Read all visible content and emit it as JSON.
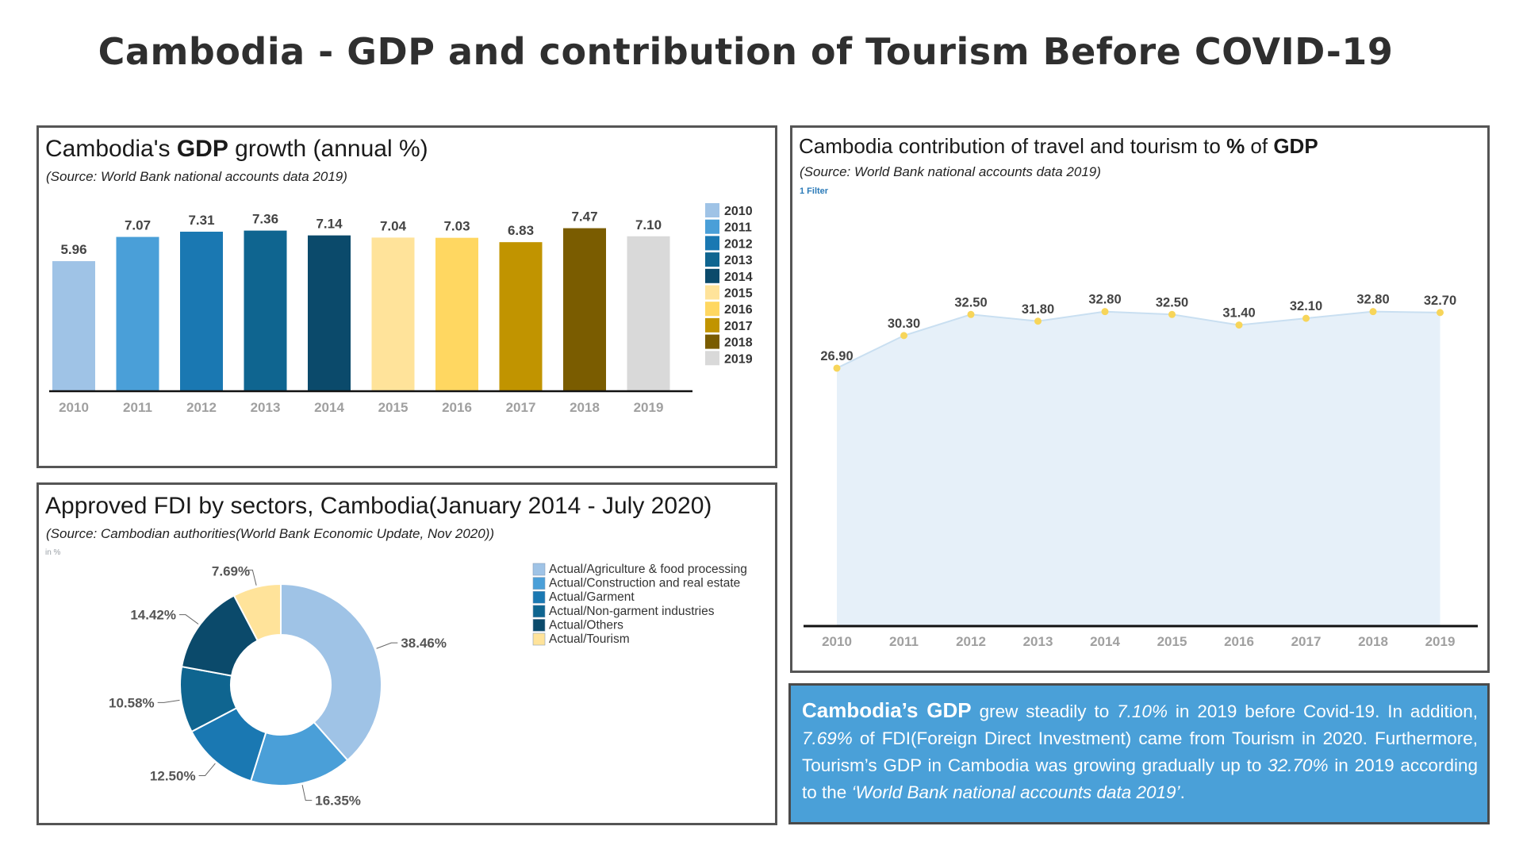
{
  "page": {
    "title": "Cambodia - GDP and contribution of Tourism Before COVID-19"
  },
  "gdp_panel": {
    "title_before": "Cambodia's ",
    "title_bold": "GDP",
    "title_after": " growth (annual %)",
    "source": "(Source: World Bank national accounts data 2019)"
  },
  "tourism_panel": {
    "title_before": "Cambodia contribution of travel and tourism to ",
    "title_bold_1": "%",
    "title_mid": " of ",
    "title_bold_2": "GDP",
    "source": "(Source: World Bank national accounts data 2019)",
    "filter_label": "1 Filter"
  },
  "fdi_panel": {
    "title": "Approved FDI by sectors, Cambodia(January 2014 - July 2020)",
    "source": "(Source: Cambodian authorities(World Bank Economic Update, Nov 2020))",
    "unit_label": "in %"
  },
  "summary": {
    "p1": "Cambodia’s GDP",
    "p2": " grew steadily to ",
    "p3": "7.10%",
    "p4": " in 2019 before Covid-19. In addition, ",
    "p5": "7.69%",
    "p6": " of FDI(Foreign Direct Investment) came from Tourism in 2020. Furthermore, Tourism’s GDP in Cambodia was growing gradually up to ",
    "p7": "32.70%",
    "p8": " in 2019 according to the ",
    "p9": "‘World Bank national accounts data 2019’",
    "p10": "."
  },
  "chart_data": [
    {
      "id": "gdp_growth",
      "type": "bar",
      "title": "Cambodia's GDP growth (annual %)",
      "categories": [
        "2010",
        "2011",
        "2012",
        "2013",
        "2014",
        "2015",
        "2016",
        "2017",
        "2018",
        "2019"
      ],
      "values": [
        5.96,
        7.07,
        7.31,
        7.36,
        7.14,
        7.04,
        7.03,
        6.83,
        7.47,
        7.1
      ],
      "labels": [
        "5.96",
        "7.07",
        "7.31",
        "7.36",
        "7.14",
        "7.04",
        "7.03",
        "6.83",
        "7.47",
        "7.10"
      ],
      "colors": [
        "#9fc3e6",
        "#4a9fd8",
        "#1a78b2",
        "#0f6590",
        "#0b4a6b",
        "#ffe39a",
        "#ffd761",
        "#c19400",
        "#7a5c00",
        "#d9d9d9"
      ],
      "ylim": [
        0,
        8
      ],
      "legend_position": "right",
      "grid": false
    },
    {
      "id": "tourism_gdp",
      "type": "area",
      "title": "Cambodia contribution of travel and tourism to % of GDP",
      "x": [
        "2010",
        "2011",
        "2012",
        "2013",
        "2014",
        "2015",
        "2016",
        "2017",
        "2018",
        "2019"
      ],
      "values": [
        26.9,
        30.3,
        32.5,
        31.8,
        32.8,
        32.5,
        31.4,
        32.1,
        32.8,
        32.7
      ],
      "labels": [
        "26.90",
        "30.30",
        "32.50",
        "31.80",
        "32.80",
        "32.50",
        "31.40",
        "32.10",
        "32.80",
        "32.70"
      ],
      "fill_color": "#e6f0f9",
      "line_color": "#c9dff1",
      "marker_color": "#f7d55a",
      "ylim": [
        0,
        36
      ],
      "grid": false
    },
    {
      "id": "fdi_sectors",
      "type": "pie",
      "title": "Approved FDI by sectors, Cambodia(January 2014 - July 2020)",
      "slices": [
        {
          "name": "Actual/Agriculture & food processing",
          "value": 38.46,
          "label": "38.46%",
          "color": "#9fc3e6"
        },
        {
          "name": "Actual/Construction and real estate",
          "value": 16.35,
          "label": "16.35%",
          "color": "#4a9fd8"
        },
        {
          "name": "Actual/Garment",
          "value": 12.5,
          "label": "12.50%",
          "color": "#1a78b2"
        },
        {
          "name": "Actual/Non-garment industries",
          "value": 10.58,
          "label": "10.58%",
          "color": "#0f6590"
        },
        {
          "name": "Actual/Others",
          "value": 14.42,
          "label": "14.42%",
          "color": "#0b4a6b"
        },
        {
          "name": "Actual/Tourism",
          "value": 7.69,
          "label": "7.69%",
          "color": "#ffe39a"
        }
      ],
      "donut": true,
      "legend_position": "right"
    }
  ]
}
